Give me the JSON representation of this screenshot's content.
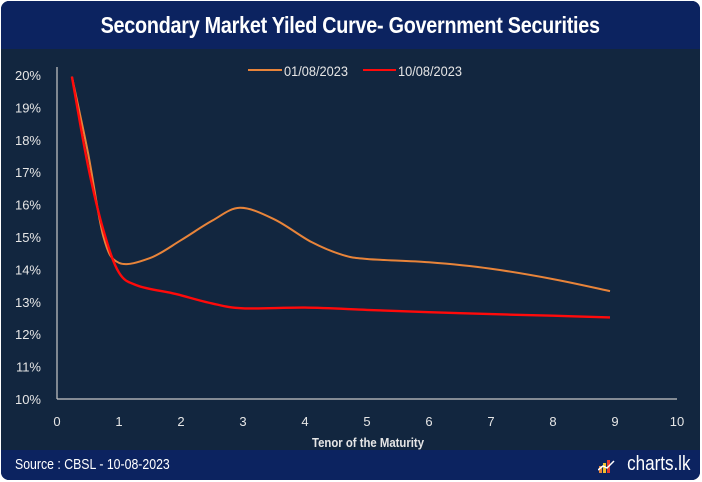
{
  "header": {
    "title": "Secondary Market Yiled Curve- Government Securities"
  },
  "footer": {
    "source": "Source : CBSL - 10-08-2023",
    "brand": "charts.lk",
    "brand_icon": "bar-chart-logo-icon"
  },
  "colors": {
    "background": "#12263f",
    "header": "#0c2360",
    "series_1": "#e8843a",
    "series_2": "#ff0a0a",
    "axis": "#c8c8c8",
    "text": "#e6e6e6"
  },
  "chart_data": {
    "type": "line",
    "title": "Secondary Market Yiled Curve- Government Securities",
    "xlabel": "Tenor of the Maturity",
    "ylabel": "",
    "xlim": [
      0,
      10
    ],
    "ylim": [
      10,
      20
    ],
    "x_ticks": [
      "0",
      "1",
      "2",
      "3",
      "4",
      "5",
      "6",
      "7",
      "8",
      "9",
      "10"
    ],
    "y_ticks": [
      "10%",
      "11%",
      "12%",
      "13%",
      "14%",
      "15%",
      "16%",
      "17%",
      "18%",
      "19%",
      "20%"
    ],
    "grid": false,
    "legend_position": "top-center",
    "series": [
      {
        "name": "01/08/2023",
        "color": "#e8843a",
        "x": [
          0.24,
          0.5,
          0.75,
          1.0,
          1.5,
          2.0,
          2.5,
          2.95,
          3.5,
          4.1,
          4.6,
          5.0,
          6.0,
          7.0,
          8.0,
          8.92
        ],
        "y": [
          19.95,
          17.6,
          15.0,
          14.2,
          14.35,
          14.9,
          15.5,
          15.9,
          15.55,
          14.85,
          14.45,
          14.32,
          14.22,
          14.02,
          13.7,
          13.33
        ]
      },
      {
        "name": "10/08/2023",
        "color": "#ff0a0a",
        "x": [
          0.24,
          0.5,
          0.75,
          1.0,
          1.3,
          1.85,
          2.0,
          2.5,
          3.0,
          4.0,
          5.0,
          6.0,
          7.0,
          8.0,
          8.92
        ],
        "y": [
          19.95,
          17.2,
          15.2,
          13.9,
          13.5,
          13.27,
          13.2,
          12.95,
          12.8,
          12.82,
          12.75,
          12.68,
          12.62,
          12.57,
          12.52
        ]
      }
    ]
  }
}
